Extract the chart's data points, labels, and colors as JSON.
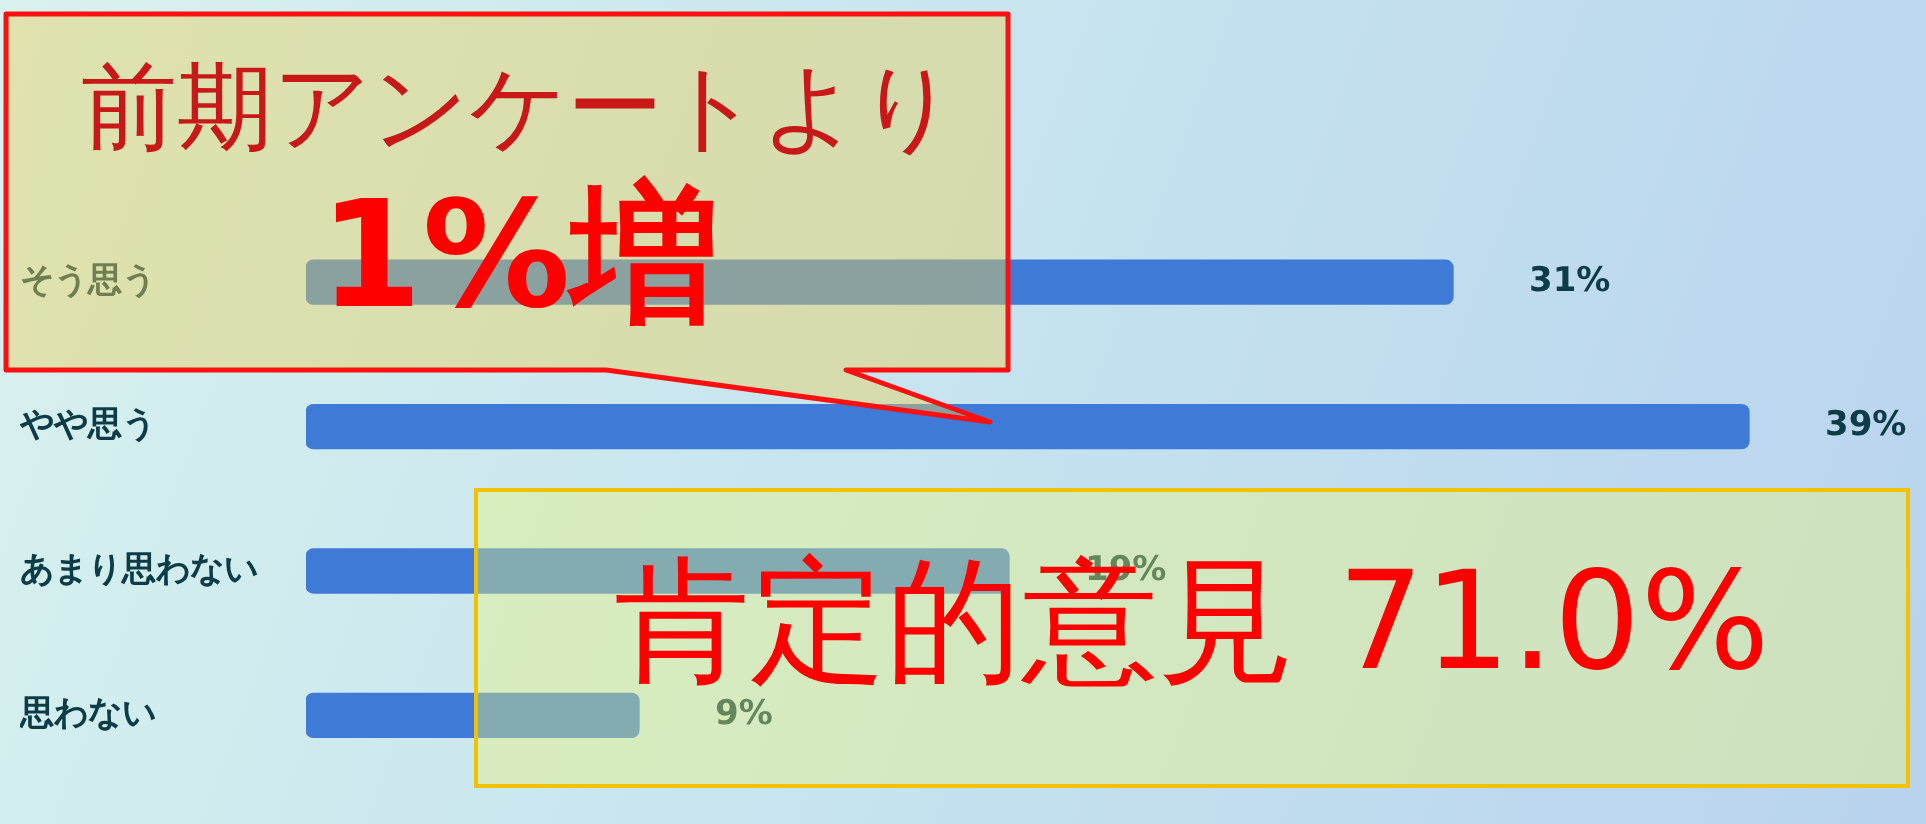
{
  "chart_data": {
    "type": "bar",
    "orientation": "horizontal",
    "categories": [
      "そう思う",
      "やや思う",
      "あまり思わない",
      "思わない"
    ],
    "values": [
      31,
      39,
      19,
      9
    ],
    "color": "#3f7ad6",
    "value_labels": [
      "31%",
      "39%",
      "19%",
      "9%"
    ],
    "annotations": [
      "前期アンケートより",
      "1%増",
      "肯定的意見 71.0%"
    ],
    "grid": false,
    "legend": false
  }
}
